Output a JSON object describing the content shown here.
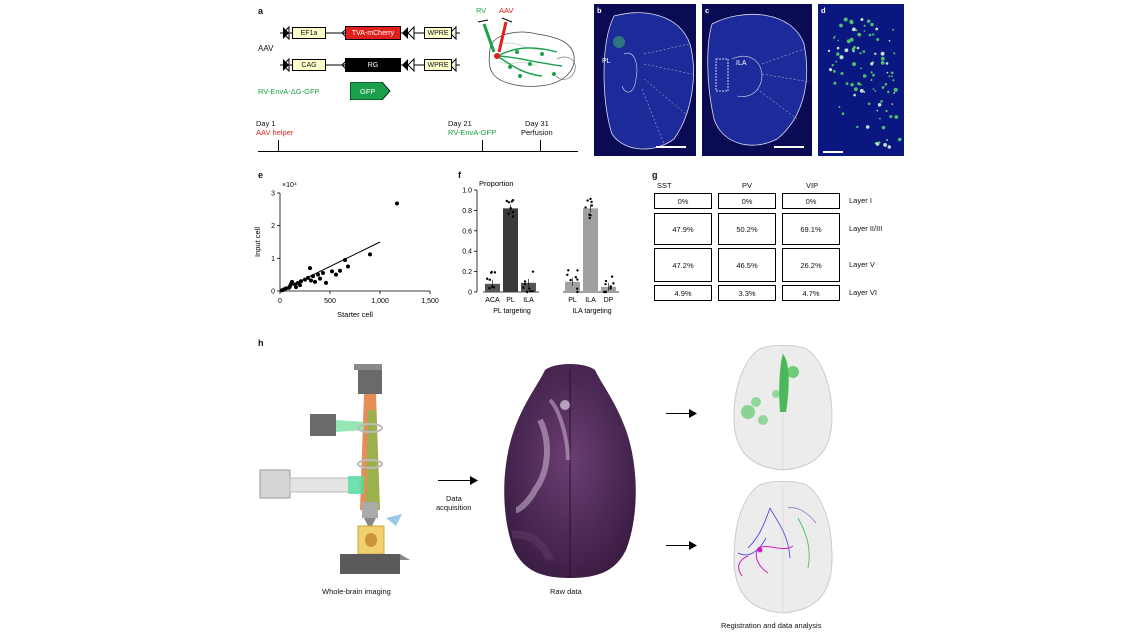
{
  "panel_a": {
    "label": "a",
    "aav_label": "AAV",
    "construct1": {
      "promoter": "EF1a",
      "gene": "TVA-mCherry",
      "wpre": "WPRE"
    },
    "construct2": {
      "promoter": "CAG",
      "gene": "RG",
      "wpre": "WPRE"
    },
    "rv_name": "RV-EnvA-ΔG-GFP",
    "rv_gene": "GFP",
    "rv_inject": "RV",
    "aav_inject": "AAV",
    "timeline": [
      {
        "day": "Day 1",
        "event": "AAV helper"
      },
      {
        "day": "Day 21",
        "event": "RV-EnvA-GFP"
      },
      {
        "day": "Day 31",
        "event": "Perfusion"
      }
    ],
    "colors": {
      "red": "#e0201c",
      "green": "#1aa04a"
    }
  },
  "panel_b": {
    "label": "b",
    "region": "PL"
  },
  "panel_c": {
    "label": "c",
    "region": "ILA"
  },
  "panel_d": {
    "label": "d"
  },
  "panel_e": {
    "label": "e",
    "chart_data": {
      "type": "scatter",
      "xlabel": "Starter cell",
      "ylabel": "Input cell",
      "y_multiplier": "×10⁴",
      "xticks": [
        "0",
        "500",
        "1,000",
        "1,500"
      ],
      "yticks": [
        "0",
        "1",
        "2",
        "3"
      ],
      "xlim": [
        0,
        1500
      ],
      "ylim": [
        0,
        3
      ],
      "points": [
        [
          20,
          0.02
        ],
        [
          40,
          0.05
        ],
        [
          60,
          0.08
        ],
        [
          90,
          0.1
        ],
        [
          100,
          0.15
        ],
        [
          110,
          0.22
        ],
        [
          120,
          0.28
        ],
        [
          150,
          0.2
        ],
        [
          160,
          0.12
        ],
        [
          180,
          0.25
        ],
        [
          200,
          0.18
        ],
        [
          210,
          0.3
        ],
        [
          250,
          0.35
        ],
        [
          280,
          0.4
        ],
        [
          300,
          0.7
        ],
        [
          310,
          0.32
        ],
        [
          330,
          0.45
        ],
        [
          350,
          0.28
        ],
        [
          380,
          0.5
        ],
        [
          400,
          0.38
        ],
        [
          430,
          0.55
        ],
        [
          460,
          0.25
        ],
        [
          520,
          0.6
        ],
        [
          560,
          0.5
        ],
        [
          600,
          0.62
        ],
        [
          650,
          0.95
        ],
        [
          680,
          0.75
        ],
        [
          900,
          1.12
        ],
        [
          1170,
          2.68
        ]
      ],
      "fit_line": [
        [
          0,
          0
        ],
        [
          1000,
          1.5
        ]
      ]
    }
  },
  "panel_f": {
    "label": "f",
    "chart_data": {
      "type": "bar",
      "title": "Proportion",
      "yticks": [
        "0",
        "0.2",
        "0.4",
        "0.6",
        "0.8",
        "1.0"
      ],
      "ylim": [
        0,
        1
      ],
      "groups": [
        {
          "name": "PL targeting",
          "categories": [
            "ACA",
            "PL",
            "ILA"
          ],
          "values": [
            0.08,
            0.82,
            0.09
          ],
          "colors": [
            "#555555",
            "#3a3a3a",
            "#555555"
          ]
        },
        {
          "name": "ILA targeting",
          "categories": [
            "PL",
            "ILA",
            "DP"
          ],
          "values": [
            0.1,
            0.82,
            0.05
          ],
          "colors": [
            "#a0a0a0",
            "#a0a0a0",
            "#a0a0a0"
          ]
        }
      ]
    }
  },
  "panel_g": {
    "label": "g",
    "columns": [
      "SST",
      "PV",
      "VIP"
    ],
    "rows": [
      {
        "layer": "Layer I",
        "values": [
          "0%",
          "0%",
          "0%"
        ]
      },
      {
        "layer": "Layer II/III",
        "values": [
          "47.9%",
          "50.2%",
          "69.1%"
        ]
      },
      {
        "layer": "Layer V",
        "values": [
          "47.2%",
          "46.5%",
          "26.2%"
        ]
      },
      {
        "layer": "Layer VI",
        "values": [
          "4.9%",
          "3.3%",
          "4.7%"
        ]
      }
    ]
  },
  "panel_h": {
    "label": "h",
    "imaging_caption": "Whole-brain imaging",
    "acquisition_line1": "Data",
    "acquisition_line2": "acquisition",
    "raw_caption": "Raw data",
    "analysis_caption": "Registration and data analysis"
  }
}
